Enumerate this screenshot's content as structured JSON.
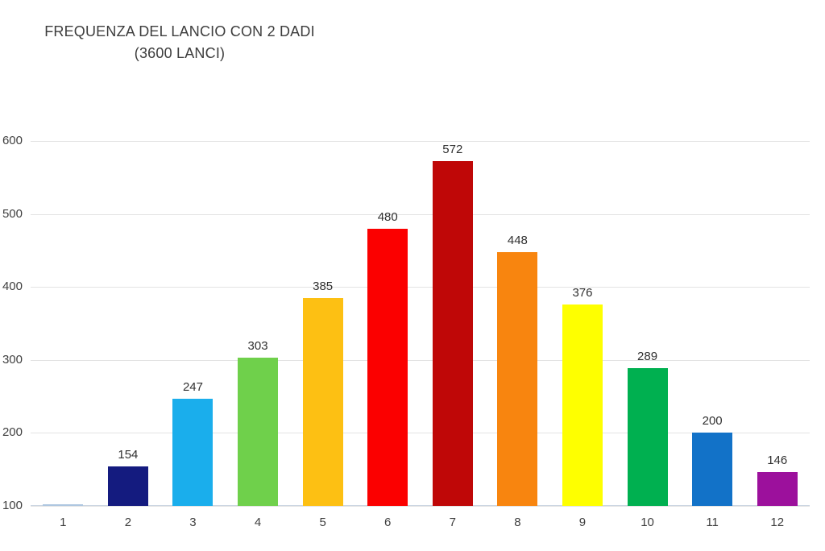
{
  "chart_data": {
    "type": "bar",
    "title_line1": "FREQUENZA DEL LANCIO CON 2 DADI",
    "title_line2": "(3600 LANCI)",
    "categories": [
      "1",
      "2",
      "3",
      "4",
      "5",
      "6",
      "7",
      "8",
      "9",
      "10",
      "11",
      "12"
    ],
    "values": [
      0,
      154,
      247,
      303,
      385,
      480,
      572,
      448,
      376,
      289,
      200,
      146
    ],
    "data_labels": [
      "",
      "154",
      "247",
      "303",
      "385",
      "480",
      "572",
      "448",
      "376",
      "289",
      "200",
      "146"
    ],
    "bar_colors": [
      "#aec6e0",
      "#141b7f",
      "#1aaeec",
      "#6fd04b",
      "#fdc013",
      "#fb0000",
      "#bf0707",
      "#f8850f",
      "#feff00",
      "#00b050",
      "#1272c8",
      "#9c109c"
    ],
    "xlabel": "",
    "ylabel": "",
    "y_ticks": [
      600,
      500,
      400,
      300,
      200,
      100
    ],
    "ylim": [
      100,
      600
    ],
    "grid": "horizontal",
    "gridline_color": "#e3e3e3",
    "axis_line_color": "#ccd6e2",
    "text_color": "#3f3f3f",
    "legend": "none"
  }
}
